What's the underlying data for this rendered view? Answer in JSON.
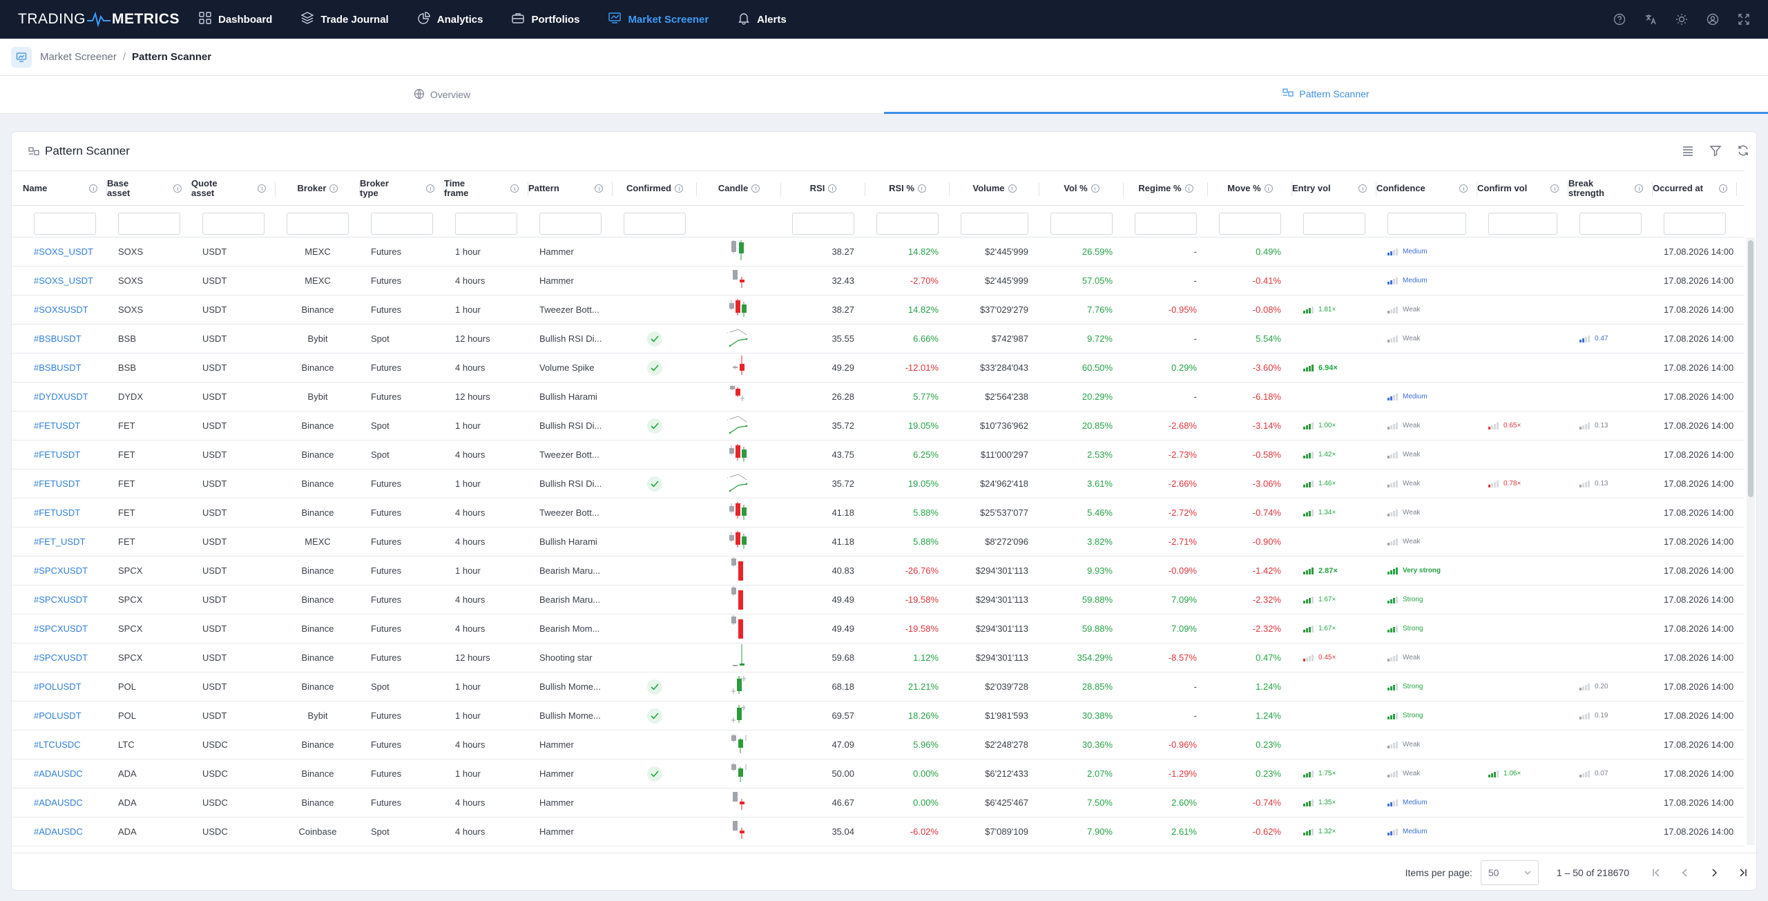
{
  "nav": {
    "logo_left": "TRADING",
    "logo_right": "METRICS",
    "items": [
      {
        "label": "Dashboard",
        "icon": "grid-icon",
        "active": false
      },
      {
        "label": "Trade Journal",
        "icon": "layers-icon",
        "active": false
      },
      {
        "label": "Analytics",
        "icon": "chart-pie-icon",
        "active": false
      },
      {
        "label": "Portfolios",
        "icon": "briefcase-icon",
        "active": false
      },
      {
        "label": "Market Screener",
        "icon": "chart-line-icon",
        "active": true
      },
      {
        "label": "Alerts",
        "icon": "bell-icon",
        "active": false
      }
    ],
    "right_icons": [
      "help-icon",
      "language-icon",
      "theme-sun-icon",
      "user-icon",
      "fullscreen-icon"
    ]
  },
  "breadcrumb": {
    "parent": "Market Screener",
    "separator": "/",
    "current": "Pattern Scanner"
  },
  "tabs": [
    {
      "label": "Overview",
      "icon": "globe-icon",
      "active": false
    },
    {
      "label": "Pattern Scanner",
      "icon": "pattern-icon",
      "active": true
    }
  ],
  "card": {
    "title": "Pattern Scanner",
    "tools": [
      "columns-icon",
      "filter-icon",
      "refresh-icon"
    ]
  },
  "columns": [
    {
      "key": "name",
      "l1": "Name",
      "l2": ""
    },
    {
      "key": "base",
      "l1": "Base",
      "l2": "asset"
    },
    {
      "key": "quote",
      "l1": "Quote",
      "l2": "asset"
    },
    {
      "key": "broker",
      "l1": "Broker",
      "l2": ""
    },
    {
      "key": "btype",
      "l1": "Broker",
      "l2": "type"
    },
    {
      "key": "tf",
      "l1": "Time",
      "l2": "frame"
    },
    {
      "key": "pattern",
      "l1": "Pattern",
      "l2": ""
    },
    {
      "key": "confirmed",
      "l1": "Confirmed",
      "l2": ""
    },
    {
      "key": "candle",
      "l1": "Candle",
      "l2": ""
    },
    {
      "key": "rsi",
      "l1": "RSI",
      "l2": ""
    },
    {
      "key": "rsip",
      "l1": "RSI %",
      "l2": ""
    },
    {
      "key": "volume",
      "l1": "Volume",
      "l2": ""
    },
    {
      "key": "volp",
      "l1": "Vol %",
      "l2": ""
    },
    {
      "key": "regime",
      "l1": "Regime %",
      "l2": ""
    },
    {
      "key": "move",
      "l1": "Move %",
      "l2": ""
    },
    {
      "key": "entryvol",
      "l1": "Entry vol",
      "l2": ""
    },
    {
      "key": "confidence",
      "l1": "Confidence",
      "l2": ""
    },
    {
      "key": "confirmvol",
      "l1": "Confirm vol",
      "l2": ""
    },
    {
      "key": "breakstr",
      "l1": "Break",
      "l2": "strength"
    },
    {
      "key": "occurred",
      "l1": "Occurred at",
      "l2": ""
    }
  ],
  "rows": [
    {
      "name": "#SOXS_USDT",
      "base": "SOXS",
      "quote": "USDT",
      "broker": "MEXC",
      "btype": "Futures",
      "tf": "1 hour",
      "pattern": "Hammer",
      "confirmed": false,
      "candle": "hammer-pair",
      "rsi": "38.27",
      "rsip": "14.82%",
      "volume": "$2'445'999",
      "volp": "26.59%",
      "regime": "-",
      "move": "0.49%",
      "entryvol": "",
      "entryvol_level": 0,
      "confidence": "Medium",
      "confidence_level": 2,
      "confirmvol": "",
      "confirmvol_level": 0,
      "breakstr": "",
      "breakstr_level": 0,
      "occurred": "17.08.2026 14:00"
    },
    {
      "name": "#SOXS_USDT",
      "base": "SOXS",
      "quote": "USDT",
      "broker": "MEXC",
      "btype": "Futures",
      "tf": "4 hours",
      "pattern": "Hammer",
      "confirmed": false,
      "candle": "hammer-red",
      "rsi": "32.43",
      "rsip": "-2.70%",
      "volume": "$2'445'999",
      "volp": "57.05%",
      "regime": "-",
      "move": "-0.41%",
      "entryvol": "",
      "entryvol_level": 0,
      "confidence": "Medium",
      "confidence_level": 2,
      "confirmvol": "",
      "confirmvol_level": 0,
      "breakstr": "",
      "breakstr_level": 0,
      "occurred": "17.08.2026 14:00"
    },
    {
      "name": "#SOXSUSDT",
      "base": "SOXS",
      "quote": "USDT",
      "broker": "Binance",
      "btype": "Futures",
      "tf": "1 hour",
      "pattern": "Tweezer Bott...",
      "confirmed": false,
      "candle": "tweezer",
      "rsi": "38.27",
      "rsip": "14.82%",
      "volume": "$37'029'279",
      "volp": "7.76%",
      "regime": "-0.95%",
      "move": "-0.08%",
      "entryvol": "1.81×",
      "entryvol_level": 3,
      "confidence": "Weak",
      "confidence_level": 1,
      "confirmvol": "",
      "confirmvol_level": 0,
      "breakstr": "",
      "breakstr_level": 0,
      "occurred": "17.08.2026 14:00"
    },
    {
      "name": "#BSBUSDT",
      "base": "BSB",
      "quote": "USDT",
      "broker": "Bybit",
      "btype": "Spot",
      "tf": "12 hours",
      "pattern": "Bullish RSI Di...",
      "confirmed": true,
      "candle": "divergence",
      "rsi": "35.55",
      "rsip": "6.66%",
      "volume": "$742'987",
      "volp": "9.72%",
      "regime": "-",
      "move": "5.54%",
      "entryvol": "",
      "entryvol_level": 0,
      "confidence": "Weak",
      "confidence_level": 1,
      "confirmvol": "",
      "confirmvol_level": 0,
      "breakstr": "0.47",
      "breakstr_level": 2,
      "occurred": "17.08.2026 14:00"
    },
    {
      "name": "#BSBUSDT",
      "base": "BSB",
      "quote": "USDT",
      "broker": "Binance",
      "btype": "Futures",
      "tf": "4 hours",
      "pattern": "Volume Spike",
      "confirmed": true,
      "candle": "spike",
      "rsi": "49.29",
      "rsip": "-12.01%",
      "volume": "$33'284'043",
      "volp": "60.50%",
      "regime": "0.29%",
      "move": "-3.60%",
      "entryvol": "6.94×",
      "entryvol_level": 4,
      "confidence": "",
      "confidence_level": 0,
      "confirmvol": "",
      "confirmvol_level": 0,
      "breakstr": "",
      "breakstr_level": 0,
      "occurred": "17.08.2026 14:00"
    },
    {
      "name": "#DYDXUSDT",
      "base": "DYDX",
      "quote": "USDT",
      "broker": "Bybit",
      "btype": "Futures",
      "tf": "12 hours",
      "pattern": "Bullish Harami",
      "confirmed": false,
      "candle": "harami",
      "rsi": "26.28",
      "rsip": "5.77%",
      "volume": "$2'564'238",
      "volp": "20.29%",
      "regime": "-",
      "move": "-6.18%",
      "entryvol": "",
      "entryvol_level": 0,
      "confidence": "Medium",
      "confidence_level": 2,
      "confirmvol": "",
      "confirmvol_level": 0,
      "breakstr": "",
      "breakstr_level": 0,
      "occurred": "17.08.2026 14:00"
    },
    {
      "name": "#FETUSDT",
      "base": "FET",
      "quote": "USDT",
      "broker": "Binance",
      "btype": "Spot",
      "tf": "1 hour",
      "pattern": "Bullish RSI Di...",
      "confirmed": true,
      "candle": "divergence",
      "rsi": "35.72",
      "rsip": "19.05%",
      "volume": "$10'736'962",
      "volp": "20.85%",
      "regime": "-2.68%",
      "move": "-3.14%",
      "entryvol": "1.00×",
      "entryvol_level": 3,
      "confidence": "Weak",
      "confidence_level": 1,
      "confirmvol": "0.65×",
      "confirmvol_level": 1,
      "breakstr": "0.13",
      "breakstr_level": 1,
      "occurred": "17.08.2026 14:00"
    },
    {
      "name": "#FETUSDT",
      "base": "FET",
      "quote": "USDT",
      "broker": "Binance",
      "btype": "Spot",
      "tf": "4 hours",
      "pattern": "Tweezer Bott...",
      "confirmed": false,
      "candle": "tweezer",
      "rsi": "43.75",
      "rsip": "6.25%",
      "volume": "$11'000'297",
      "volp": "2.53%",
      "regime": "-2.73%",
      "move": "-0.58%",
      "entryvol": "1.42×",
      "entryvol_level": 3,
      "confidence": "Weak",
      "confidence_level": 1,
      "confirmvol": "",
      "confirmvol_level": 0,
      "breakstr": "",
      "breakstr_level": 0,
      "occurred": "17.08.2026 14:00"
    },
    {
      "name": "#FETUSDT",
      "base": "FET",
      "quote": "USDT",
      "broker": "Binance",
      "btype": "Futures",
      "tf": "1 hour",
      "pattern": "Bullish RSI Di...",
      "confirmed": true,
      "candle": "divergence",
      "rsi": "35.72",
      "rsip": "19.05%",
      "volume": "$24'962'418",
      "volp": "3.61%",
      "regime": "-2.66%",
      "move": "-3.06%",
      "entryvol": "1.46×",
      "entryvol_level": 3,
      "confidence": "Weak",
      "confidence_level": 1,
      "confirmvol": "0.78×",
      "confirmvol_level": 1,
      "breakstr": "0.13",
      "breakstr_level": 1,
      "occurred": "17.08.2026 14:00"
    },
    {
      "name": "#FETUSDT",
      "base": "FET",
      "quote": "USDT",
      "broker": "Binance",
      "btype": "Futures",
      "tf": "4 hours",
      "pattern": "Tweezer Bott...",
      "confirmed": false,
      "candle": "tweezer",
      "rsi": "41.18",
      "rsip": "5.88%",
      "volume": "$25'537'077",
      "volp": "5.46%",
      "regime": "-2.72%",
      "move": "-0.74%",
      "entryvol": "1.34×",
      "entryvol_level": 3,
      "confidence": "Weak",
      "confidence_level": 1,
      "confirmvol": "",
      "confirmvol_level": 0,
      "breakstr": "",
      "breakstr_level": 0,
      "occurred": "17.08.2026 14:00"
    },
    {
      "name": "#FET_USDT",
      "base": "FET",
      "quote": "USDT",
      "broker": "MEXC",
      "btype": "Futures",
      "tf": "4 hours",
      "pattern": "Bullish Harami",
      "confirmed": false,
      "candle": "tweezer",
      "rsi": "41.18",
      "rsip": "5.88%",
      "volume": "$8'272'096",
      "volp": "3.82%",
      "regime": "-2.71%",
      "move": "-0.90%",
      "entryvol": "",
      "entryvol_level": 0,
      "confidence": "Weak",
      "confidence_level": 1,
      "confirmvol": "",
      "confirmvol_level": 0,
      "breakstr": "",
      "breakstr_level": 0,
      "occurred": "17.08.2026 14:00"
    },
    {
      "name": "#SPCXUSDT",
      "base": "SPCX",
      "quote": "USDT",
      "broker": "Binance",
      "btype": "Futures",
      "tf": "1 hour",
      "pattern": "Bearish Maru...",
      "confirmed": false,
      "candle": "marubozu",
      "rsi": "40.83",
      "rsip": "-26.76%",
      "volume": "$294'301'113",
      "volp": "9.93%",
      "regime": "-0.09%",
      "move": "-1.42%",
      "entryvol": "2.87×",
      "entryvol_level": 4,
      "confidence": "Very strong",
      "confidence_level": 4,
      "confirmvol": "",
      "confirmvol_level": 0,
      "breakstr": "",
      "breakstr_level": 0,
      "occurred": "17.08.2026 14:00"
    },
    {
      "name": "#SPCXUSDT",
      "base": "SPCX",
      "quote": "USDT",
      "broker": "Binance",
      "btype": "Futures",
      "tf": "4 hours",
      "pattern": "Bearish Maru...",
      "confirmed": false,
      "candle": "marubozu",
      "rsi": "49.49",
      "rsip": "-19.58%",
      "volume": "$294'301'113",
      "volp": "59.88%",
      "regime": "7.09%",
      "move": "-2.32%",
      "entryvol": "1.67×",
      "entryvol_level": 3,
      "confidence": "Strong",
      "confidence_level": 3,
      "confirmvol": "",
      "confirmvol_level": 0,
      "breakstr": "",
      "breakstr_level": 0,
      "occurred": "17.08.2026 14:00"
    },
    {
      "name": "#SPCXUSDT",
      "base": "SPCX",
      "quote": "USDT",
      "broker": "Binance",
      "btype": "Futures",
      "tf": "4 hours",
      "pattern": "Bearish Mom...",
      "confirmed": false,
      "candle": "marubozu",
      "rsi": "49.49",
      "rsip": "-19.58%",
      "volume": "$294'301'113",
      "volp": "59.88%",
      "regime": "7.09%",
      "move": "-2.32%",
      "entryvol": "1.67×",
      "entryvol_level": 3,
      "confidence": "Strong",
      "confidence_level": 3,
      "confirmvol": "",
      "confirmvol_level": 0,
      "breakstr": "",
      "breakstr_level": 0,
      "occurred": "17.08.2026 14:00"
    },
    {
      "name": "#SPCXUSDT",
      "base": "SPCX",
      "quote": "USDT",
      "broker": "Binance",
      "btype": "Futures",
      "tf": "12 hours",
      "pattern": "Shooting star",
      "confirmed": false,
      "candle": "shooting",
      "rsi": "59.68",
      "rsip": "1.12%",
      "volume": "$294'301'113",
      "volp": "354.29%",
      "regime": "-8.57%",
      "move": "0.47%",
      "entryvol": "0.45×",
      "entryvol_level": 1,
      "confidence": "Weak",
      "confidence_level": 1,
      "confirmvol": "",
      "confirmvol_level": 0,
      "breakstr": "",
      "breakstr_level": 0,
      "occurred": "17.08.2026 14:00"
    },
    {
      "name": "#POLUSDT",
      "base": "POL",
      "quote": "USDT",
      "broker": "Binance",
      "btype": "Spot",
      "tf": "1 hour",
      "pattern": "Bullish Mome...",
      "confirmed": true,
      "candle": "momentum",
      "rsi": "68.18",
      "rsip": "21.21%",
      "volume": "$2'039'728",
      "volp": "28.85%",
      "regime": "-",
      "move": "1.24%",
      "entryvol": "",
      "entryvol_level": 0,
      "confidence": "Strong",
      "confidence_level": 3,
      "confirmvol": "",
      "confirmvol_level": 0,
      "breakstr": "0.20",
      "breakstr_level": 1,
      "occurred": "17.08.2026 14:00"
    },
    {
      "name": "#POLUSDT",
      "base": "POL",
      "quote": "USDT",
      "broker": "Bybit",
      "btype": "Futures",
      "tf": "1 hour",
      "pattern": "Bullish Mome...",
      "confirmed": true,
      "candle": "momentum",
      "rsi": "69.57",
      "rsip": "18.26%",
      "volume": "$1'981'593",
      "volp": "30.38%",
      "regime": "-",
      "move": "1.24%",
      "entryvol": "",
      "entryvol_level": 0,
      "confidence": "Strong",
      "confidence_level": 3,
      "confirmvol": "",
      "confirmvol_level": 0,
      "breakstr": "0.19",
      "breakstr_level": 1,
      "occurred": "17.08.2026 14:00"
    },
    {
      "name": "#LTCUSDC",
      "base": "LTC",
      "quote": "USDC",
      "broker": "Binance",
      "btype": "Futures",
      "tf": "4 hours",
      "pattern": "Hammer",
      "confirmed": false,
      "candle": "hammer-green",
      "rsi": "47.09",
      "rsip": "5.96%",
      "volume": "$2'248'278",
      "volp": "30.36%",
      "regime": "-0.96%",
      "move": "0.23%",
      "entryvol": "",
      "entryvol_level": 0,
      "confidence": "Weak",
      "confidence_level": 1,
      "confirmvol": "",
      "confirmvol_level": 0,
      "breakstr": "",
      "breakstr_level": 0,
      "occurred": "17.08.2026 14:00"
    },
    {
      "name": "#ADAUSDC",
      "base": "ADA",
      "quote": "USDC",
      "broker": "Binance",
      "btype": "Futures",
      "tf": "1 hour",
      "pattern": "Hammer",
      "confirmed": true,
      "candle": "hammer-green",
      "rsi": "50.00",
      "rsip": "0.00%",
      "volume": "$6'212'433",
      "volp": "2.07%",
      "regime": "-1.29%",
      "move": "0.23%",
      "entryvol": "1.75×",
      "entryvol_level": 3,
      "confidence": "Weak",
      "confidence_level": 1,
      "confirmvol": "1.06×",
      "confirmvol_level": 3,
      "breakstr": "0.07",
      "breakstr_level": 1,
      "occurred": "17.08.2026 14:00"
    },
    {
      "name": "#ADAUSDC",
      "base": "ADA",
      "quote": "USDC",
      "broker": "Binance",
      "btype": "Futures",
      "tf": "4 hours",
      "pattern": "Hammer",
      "confirmed": false,
      "candle": "hammer-red",
      "rsi": "46.67",
      "rsip": "0.00%",
      "volume": "$6'425'467",
      "volp": "7.50%",
      "regime": "2.60%",
      "move": "-0.74%",
      "entryvol": "1.35×",
      "entryvol_level": 3,
      "confidence": "Medium",
      "confidence_level": 2,
      "confirmvol": "",
      "confirmvol_level": 0,
      "breakstr": "",
      "breakstr_level": 0,
      "occurred": "17.08.2026 14:00"
    },
    {
      "name": "#ADAUSDC",
      "base": "ADA",
      "quote": "USDC",
      "broker": "Coinbase",
      "btype": "Spot",
      "tf": "4 hours",
      "pattern": "Hammer",
      "confirmed": false,
      "candle": "hammer-red",
      "rsi": "35.04",
      "rsip": "-6.02%",
      "volume": "$7'089'109",
      "volp": "7.90%",
      "regime": "2.61%",
      "move": "-0.62%",
      "entryvol": "1.32×",
      "entryvol_level": 3,
      "confidence": "Medium",
      "confidence_level": 2,
      "confirmvol": "",
      "confirmvol_level": 0,
      "breakstr": "",
      "breakstr_level": 0,
      "occurred": "17.08.2026 14:00"
    }
  ],
  "pagination": {
    "items_per_page_label": "Items per page:",
    "items_per_page": "50",
    "range": "1 – 50 of 218670"
  },
  "colors": {
    "accent": "#3d8fe5",
    "positive": "#25a244",
    "negative": "#e0353b",
    "nav_bg": "#141c2f"
  }
}
